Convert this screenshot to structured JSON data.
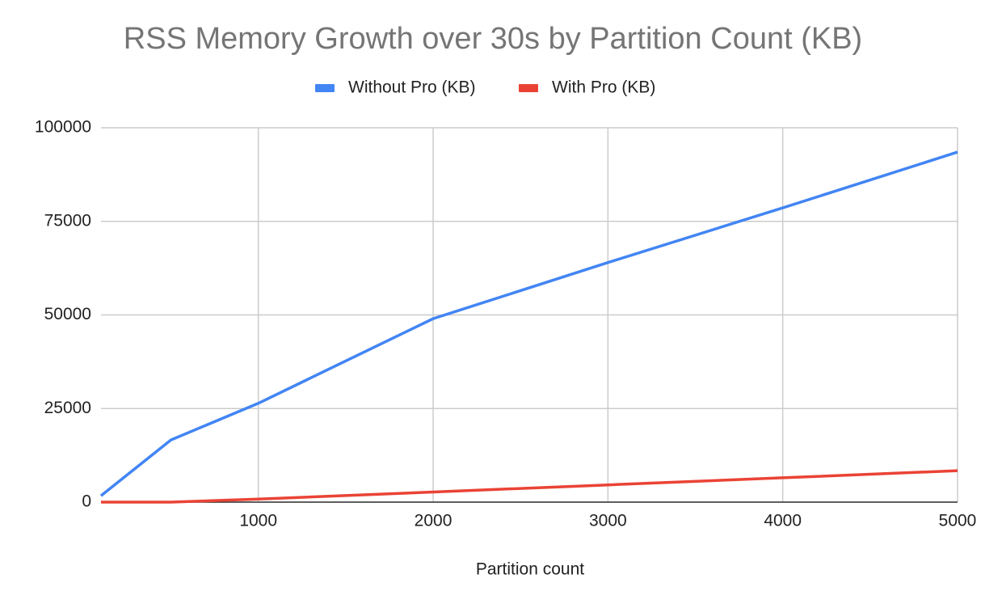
{
  "chart_data": {
    "type": "line",
    "title": "RSS Memory Growth over 30s by Partition Count (KB)",
    "x_label": "Partition count",
    "x": [
      100,
      500,
      1000,
      2000,
      3000,
      4000,
      5000
    ],
    "series": [
      {
        "name": "Without Pro (KB)",
        "color": "#4285f4",
        "values": [
          1700,
          16600,
          26400,
          49000,
          64000,
          78600,
          93500
        ]
      },
      {
        "name": "With Pro (KB)",
        "color": "#ea4335",
        "values": [
          0,
          0,
          800,
          2700,
          4600,
          6500,
          8400
        ]
      }
    ],
    "xlim": [
      100,
      5000
    ],
    "xticks": [
      1000,
      2000,
      3000,
      4000,
      5000
    ],
    "ylim": [
      0,
      100000
    ],
    "yticks": [
      0,
      25000,
      50000,
      75000,
      100000
    ],
    "grid": true,
    "legend": "top"
  }
}
